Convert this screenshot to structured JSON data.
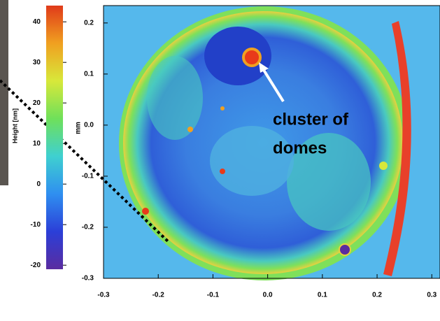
{
  "chart_data": {
    "type": "heatmap",
    "ylabel": "mm",
    "xlim": [
      -0.3,
      0.315
    ],
    "ylim": [
      -0.3,
      0.234
    ],
    "xticks": [
      -0.3,
      -0.2,
      -0.1,
      {
        "value": 0,
        "label": "0.0"
      },
      0.1,
      0.2,
      0.3
    ],
    "yticks": [
      -0.3,
      -0.2,
      -0.1,
      {
        "value": 0,
        "label": "0.0"
      },
      0.1,
      0.2
    ],
    "colorbar": {
      "label": "Height [nm]",
      "lim": [
        -21,
        44
      ],
      "ticks": [
        -20,
        -10,
        0,
        10,
        20,
        30,
        40
      ],
      "colors": [
        "#5a2ca0",
        "#2b3fd8",
        "#2f8ff0",
        "#3fd0d0",
        "#6fe05a",
        "#d8e83a",
        "#f0a020",
        "#e03a1a"
      ]
    },
    "annotation": [
      "cluster of",
      "domes"
    ]
  }
}
